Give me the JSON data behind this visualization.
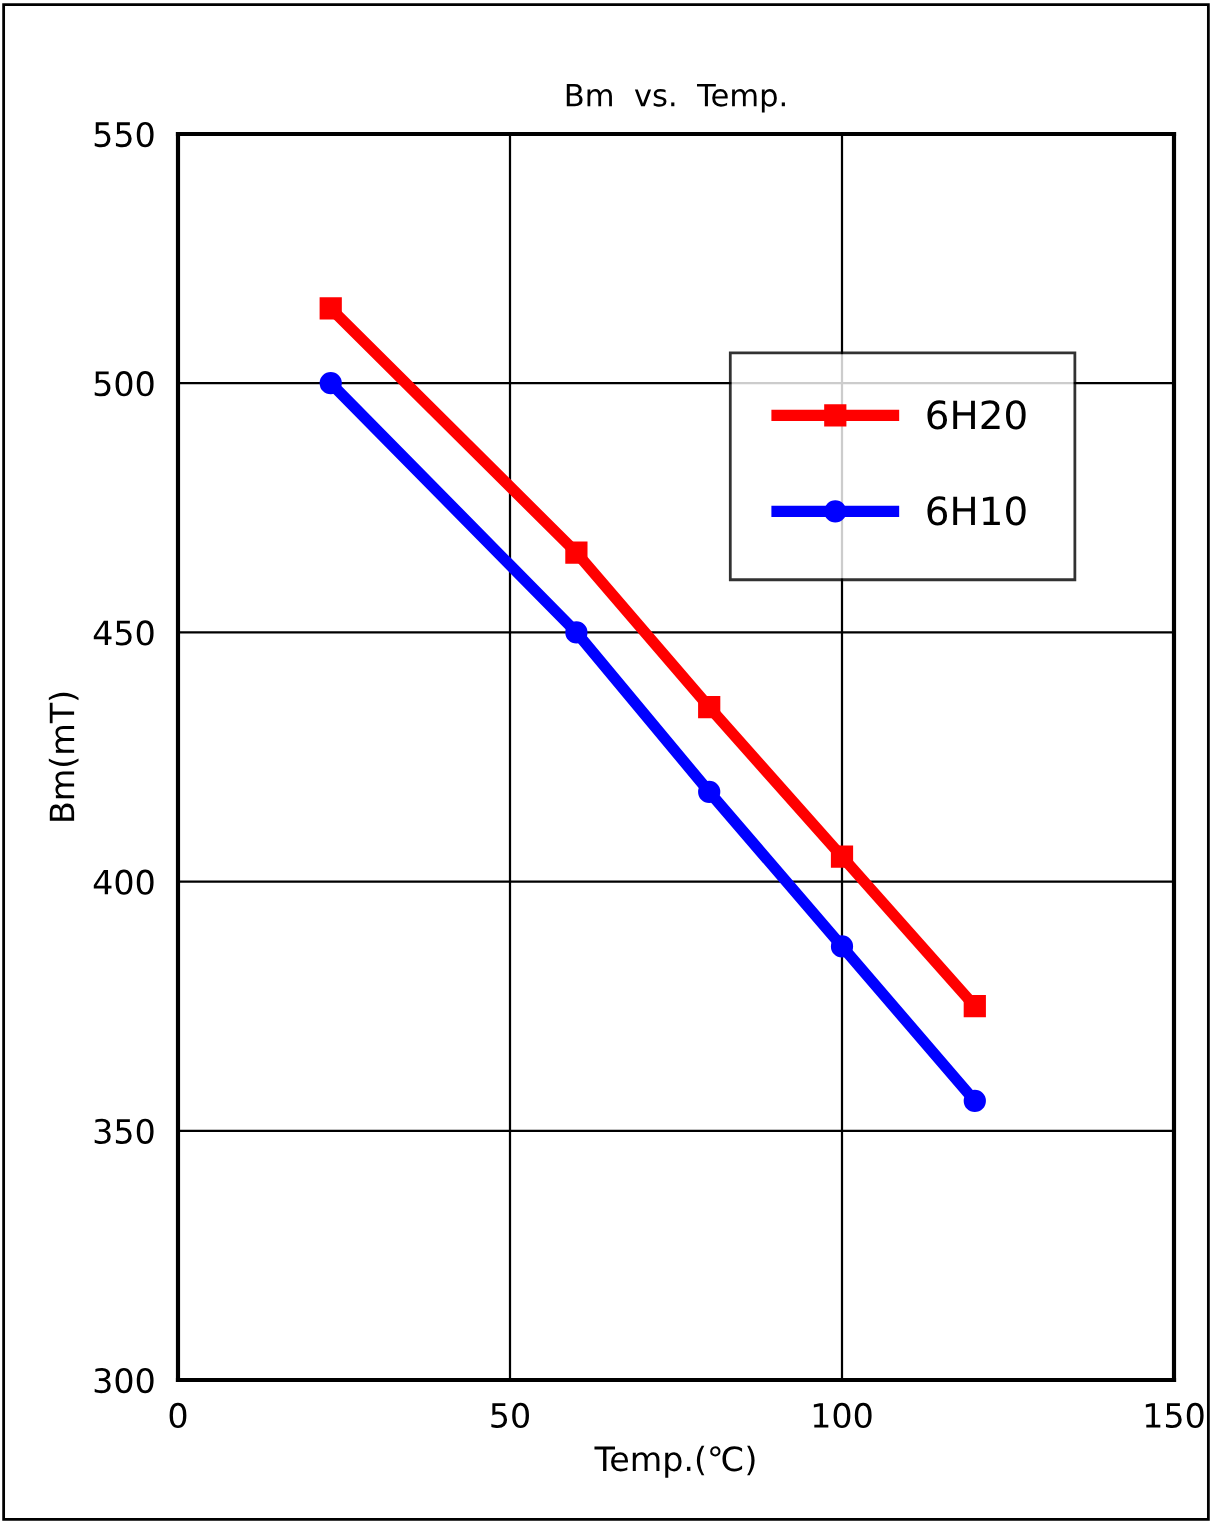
{
  "chart_data": {
    "type": "line",
    "title": "Bm  vs.  Temp.",
    "xlabel": "Temp.(℃)",
    "ylabel": "Bm(mT)",
    "series": [
      {
        "name": "6H20",
        "color": "#ff0000",
        "marker": "square",
        "x": [
          23,
          60,
          80,
          100,
          120
        ],
        "values": [
          515,
          466,
          435,
          405,
          375
        ]
      },
      {
        "name": "6H10",
        "color": "#0000ff",
        "marker": "circle",
        "x": [
          23,
          60,
          80,
          100,
          120
        ],
        "values": [
          500,
          450,
          418,
          387,
          356
        ]
      }
    ],
    "xlim": [
      0,
      150
    ],
    "xticks": [
      0,
      50,
      100,
      150
    ],
    "ylim": [
      300,
      550
    ],
    "yticks": [
      300,
      350,
      400,
      450,
      500,
      550
    ],
    "grid": true,
    "legend": "top right",
    "line_style": "solid"
  }
}
